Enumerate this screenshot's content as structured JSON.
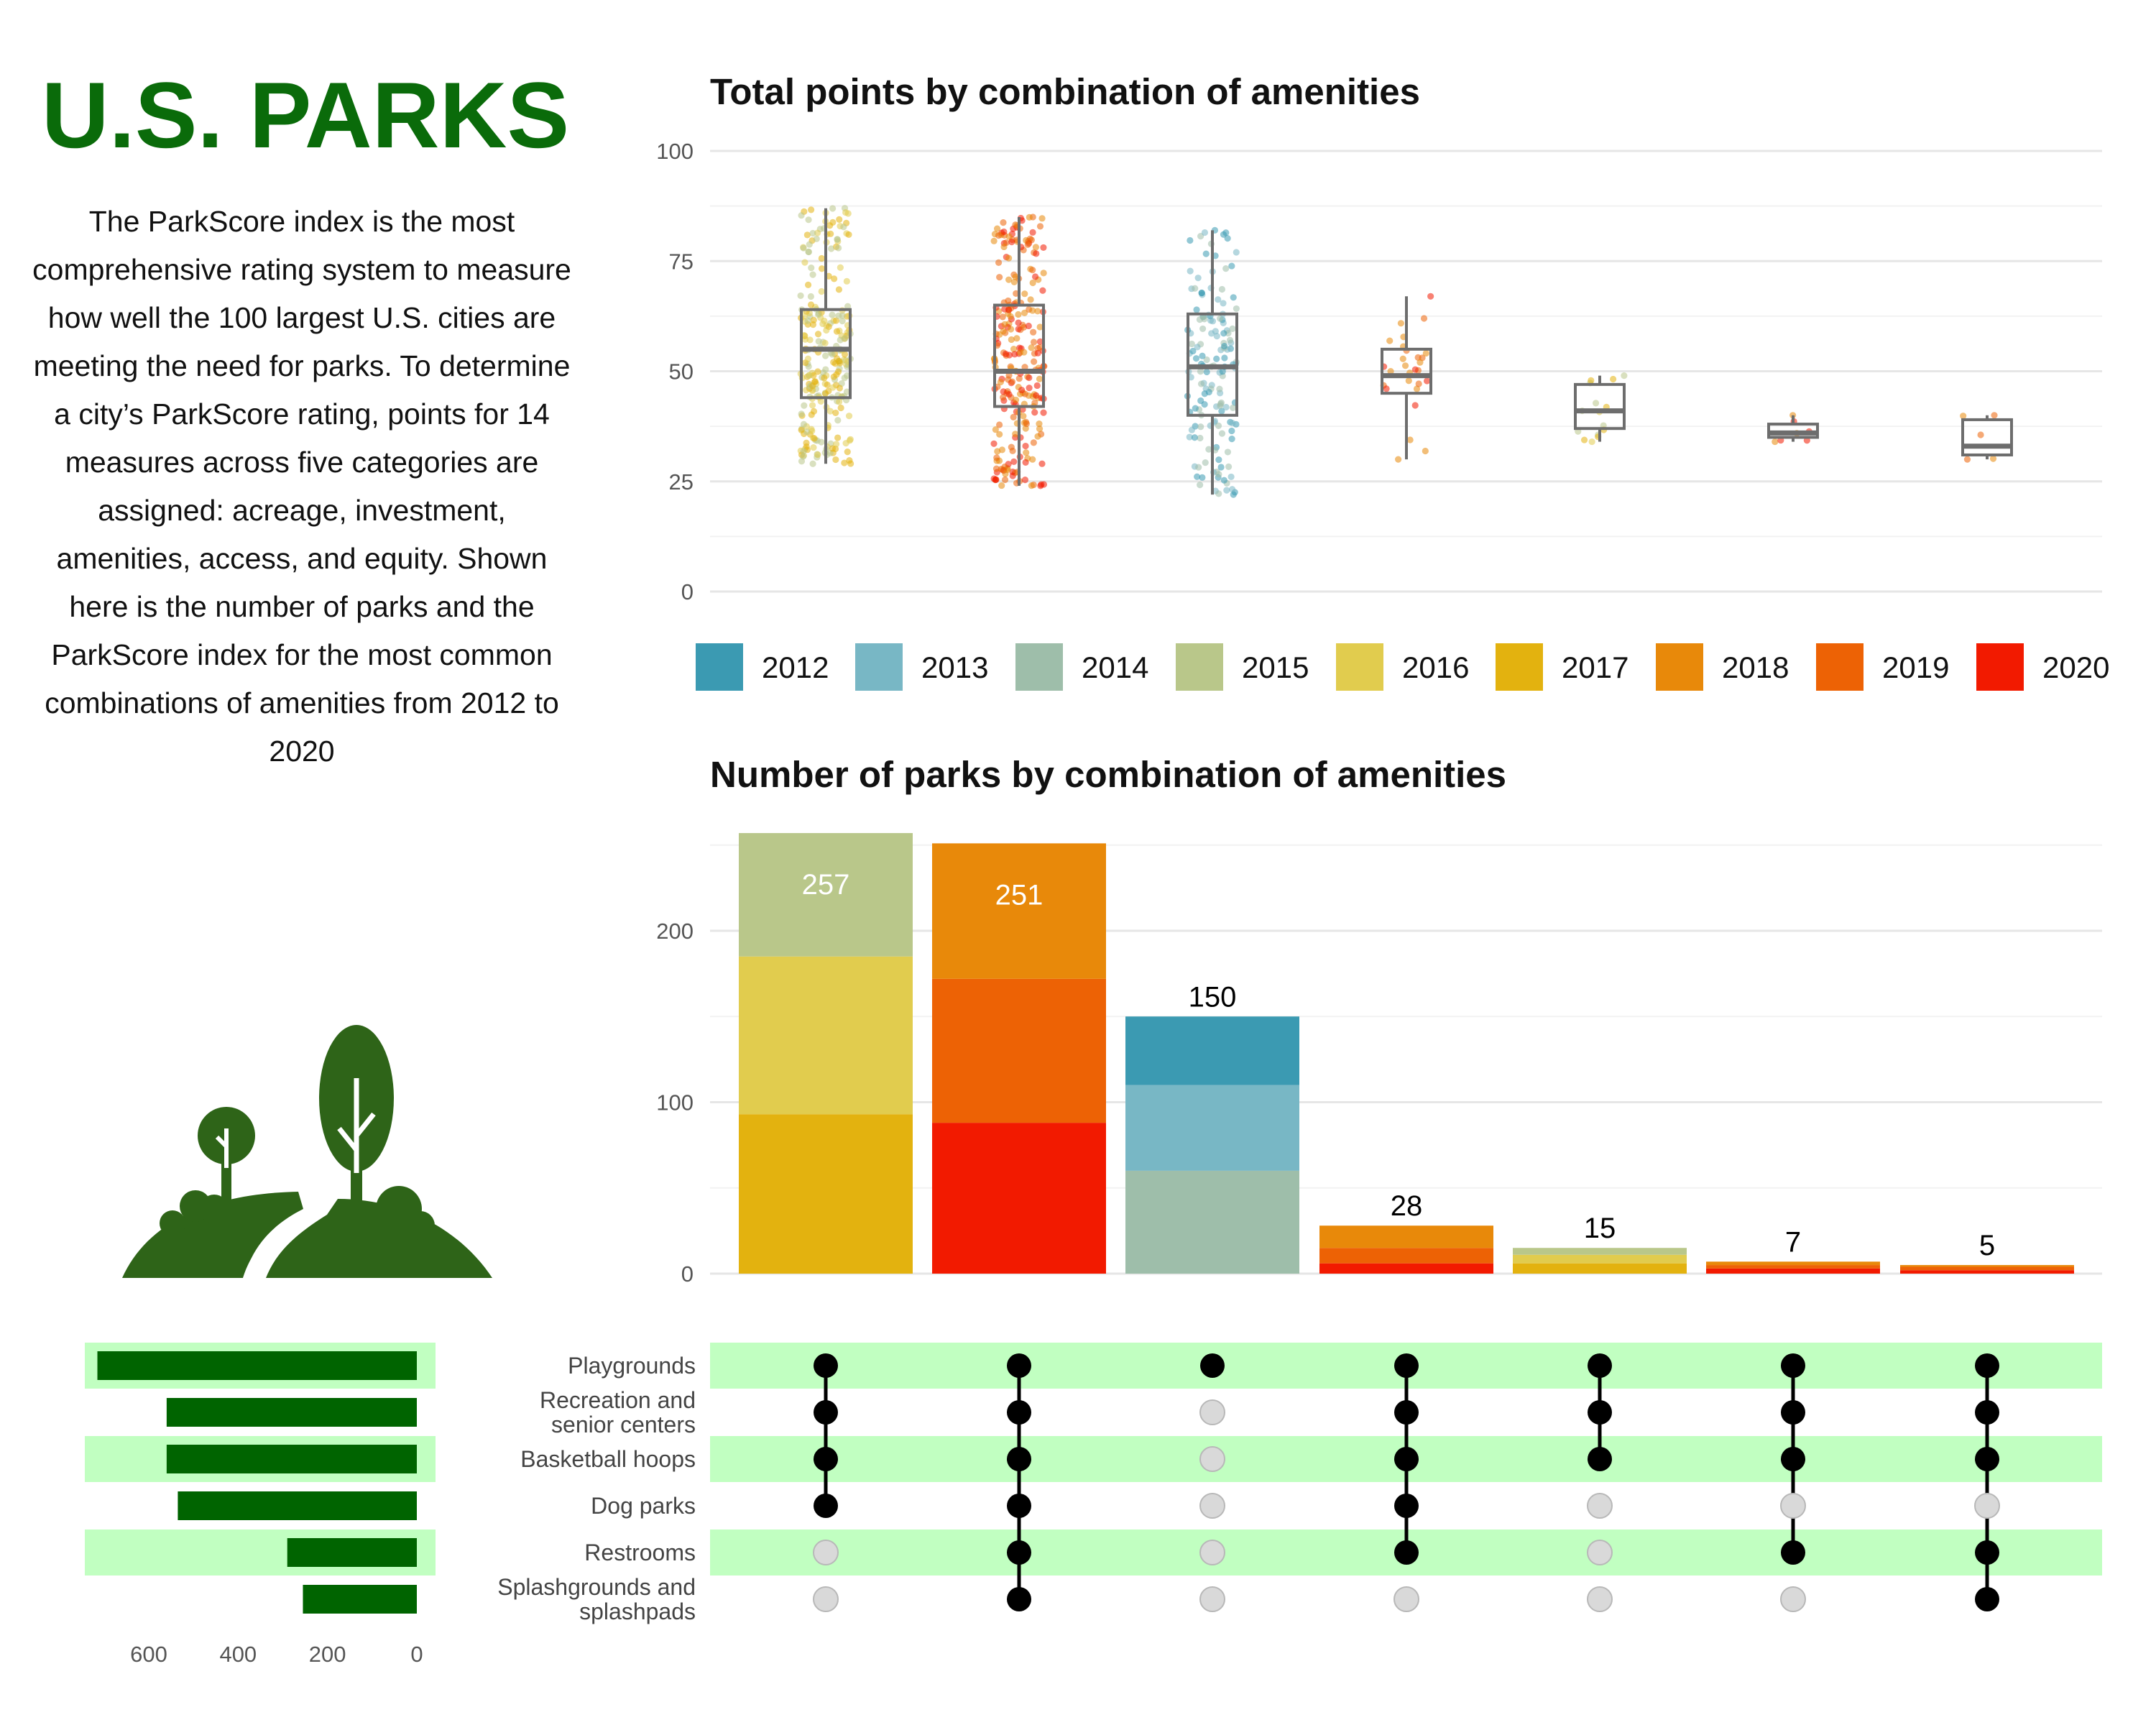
{
  "header": {
    "title": "U.S. PARKS",
    "description": "The ParkScore index is the most comprehensive rating system to measure how well the 100 largest U.S. cities are meeting the need for parks. To determine a city’s ParkScore rating, points for 14 measures across five categories are assigned: acreage, investment, amenities, access, and equity. Shown here is the number of parks and the ParkScore index for the most common combinations of amenities from 2012 to 2020"
  },
  "illustration": {
    "icon": "park-trees-hills-icon",
    "color": "#2e6418"
  },
  "colors": {
    "2012": "#3b9ab2",
    "2013": "#78b7c5",
    "2014": "#9ebeaa",
    "2015": "#b9c78a",
    "2016": "#e1cc4e",
    "2017": "#e3b20f",
    "2018": "#e8890a",
    "2019": "#ed6205",
    "2020": "#f21a00",
    "matrix_highlight": "#c1ffc1",
    "set_bar": "#006400",
    "dot_on": "#000000",
    "dot_off": "#d9d9d9"
  },
  "chart_data": [
    {
      "type": "scatter",
      "title": "Total points by combination of amenities",
      "description_of_marks": "boxplot with jittered points per combination",
      "ylim": [
        0,
        100
      ],
      "yticks": [
        0,
        25,
        50,
        75,
        100
      ],
      "grid": true,
      "legend": {
        "placement": "bottom",
        "entries": [
          "2012",
          "2013",
          "2014",
          "2015",
          "2016",
          "2017",
          "2018",
          "2019",
          "2020"
        ]
      },
      "boxes": [
        {
          "min": 29,
          "q1": 44,
          "median": 55,
          "q3": 64,
          "max": 87,
          "years": [
            "2015",
            "2016",
            "2017"
          ],
          "n": 257
        },
        {
          "min": 24,
          "q1": 42,
          "median": 50,
          "q3": 65,
          "max": 85,
          "years": [
            "2018",
            "2019",
            "2020"
          ],
          "n": 251
        },
        {
          "min": 22,
          "q1": 40,
          "median": 51,
          "q3": 63,
          "max": 82,
          "years": [
            "2012",
            "2013",
            "2014"
          ],
          "n": 150
        },
        {
          "min": 30,
          "q1": 45,
          "median": 49,
          "q3": 55,
          "max": 67,
          "years": [
            "2018",
            "2019",
            "2020"
          ],
          "n": 28
        },
        {
          "min": 34,
          "q1": 37,
          "median": 41,
          "q3": 47,
          "max": 49,
          "years": [
            "2015",
            "2016",
            "2017"
          ],
          "n": 15
        },
        {
          "min": 34,
          "q1": 35,
          "median": 36,
          "q3": 38,
          "max": 40,
          "years": [
            "2018",
            "2019",
            "2020"
          ],
          "n": 7
        },
        {
          "min": 30,
          "q1": 31,
          "median": 33,
          "q3": 39,
          "max": 40,
          "years": [
            "2018",
            "2019",
            "2020"
          ],
          "n": 5
        }
      ]
    },
    {
      "type": "bar",
      "title": "Number of parks by combination of amenities",
      "ylim": [
        0,
        260
      ],
      "yticks": [
        0,
        100,
        200
      ],
      "grid": true,
      "stacked": true,
      "totals": [
        257,
        251,
        150,
        28,
        15,
        7,
        5
      ],
      "total_labels": [
        "257",
        "251",
        "150",
        "28",
        "15",
        "7",
        "5"
      ],
      "segments": [
        [
          {
            "year": "2017",
            "value": 93
          },
          {
            "year": "2016",
            "value": 92
          },
          {
            "year": "2015",
            "value": 72
          }
        ],
        [
          {
            "year": "2020",
            "value": 88
          },
          {
            "year": "2019",
            "value": 84
          },
          {
            "year": "2018",
            "value": 79
          }
        ],
        [
          {
            "year": "2014",
            "value": 60
          },
          {
            "year": "2013",
            "value": 50
          },
          {
            "year": "2012",
            "value": 40
          }
        ],
        [
          {
            "year": "2020",
            "value": 6
          },
          {
            "year": "2019",
            "value": 9
          },
          {
            "year": "2018",
            "value": 13
          }
        ],
        [
          {
            "year": "2017",
            "value": 6
          },
          {
            "year": "2016",
            "value": 5
          },
          {
            "year": "2015",
            "value": 4
          }
        ],
        [
          {
            "year": "2020",
            "value": 3
          },
          {
            "year": "2019",
            "value": 2
          },
          {
            "year": "2018",
            "value": 2
          }
        ],
        [
          {
            "year": "2020",
            "value": 2
          },
          {
            "year": "2019",
            "value": 2
          },
          {
            "year": "2018",
            "value": 1
          }
        ]
      ]
    },
    {
      "type": "bar",
      "orientation": "horizontal",
      "description_of_marks": "set size bars (reversed x axis)",
      "categories": [
        "Playgrounds",
        "Recreation and senior centers",
        "Basketball hoops",
        "Dog parks",
        "Restrooms",
        "Splashgrounds and splashpads"
      ],
      "row_labels": [
        [
          "Playgrounds"
        ],
        [
          "Recreation and",
          "senior centers"
        ],
        [
          "Basketball hoops"
        ],
        [
          "Dog parks"
        ],
        [
          "Restrooms"
        ],
        [
          "Splashgrounds and",
          "splashpads"
        ]
      ],
      "values": [
        715,
        560,
        560,
        535,
        290,
        255
      ],
      "xlim": [
        0,
        745
      ],
      "xticks": [
        600,
        400,
        200,
        0
      ],
      "xtick_labels": [
        "600",
        "400",
        "200",
        "0"
      ]
    },
    {
      "type": "table",
      "description_of_marks": "set membership matrix; rows = amenities, columns = combinations",
      "membership": [
        [
          1,
          1,
          1,
          1,
          1,
          1,
          1
        ],
        [
          1,
          1,
          0,
          1,
          1,
          1,
          1
        ],
        [
          1,
          1,
          0,
          1,
          1,
          1,
          1
        ],
        [
          1,
          1,
          0,
          1,
          0,
          0,
          0
        ],
        [
          0,
          1,
          0,
          1,
          0,
          1,
          1
        ],
        [
          0,
          1,
          0,
          0,
          0,
          0,
          1
        ]
      ]
    }
  ]
}
